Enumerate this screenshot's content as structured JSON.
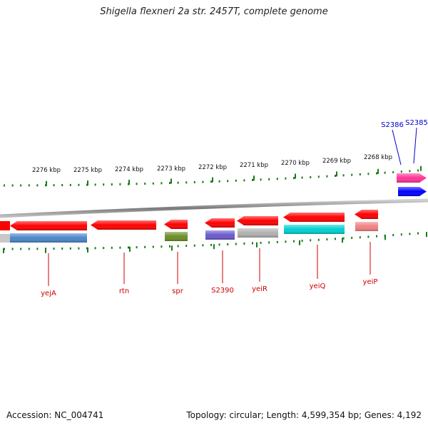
{
  "title": "Shigella flexneri 2a str. 2457T, complete genome",
  "footer": {
    "accession": "Accession: NC_004741",
    "summary": "Topology: circular; Length: 4,599,354 bp; Genes: 4,192"
  },
  "colors": {
    "ruler": "#1a7a1a",
    "backbone": "#8a8a8a",
    "label_forward": "#0000cc",
    "label_reverse": "#cc0000"
  },
  "scale_labels": [
    "2276 kbp",
    "2275 kbp",
    "2274 kbp",
    "2273 kbp",
    "2272 kbp",
    "2271 kbp",
    "2270 kbp",
    "2269 kbp",
    "2268 kbp"
  ],
  "forward_genes": [
    {
      "label": "S2386",
      "color": "#ff3399"
    },
    {
      "label": "S2385",
      "color": "#0000ff"
    }
  ],
  "reverse_genes": [
    {
      "label": "yejA",
      "color": "#ff0000",
      "feature_color": "#4a86c8"
    },
    {
      "label": "rtn",
      "color": "#ff0000"
    },
    {
      "label": "spr",
      "color": "#ff0000",
      "feature_color": "#6b8e23"
    },
    {
      "label": "S2390",
      "color": "#ff0000",
      "feature_color": "#6a5acd"
    },
    {
      "label": "yeiR",
      "color": "#ff0000",
      "feature_color": "#b0b0b0"
    },
    {
      "label": "yeiQ",
      "color": "#ff0000",
      "feature_color": "#00d0d0"
    },
    {
      "label": "yeiP",
      "color": "#ff0000",
      "feature_color": "#f08080"
    }
  ]
}
